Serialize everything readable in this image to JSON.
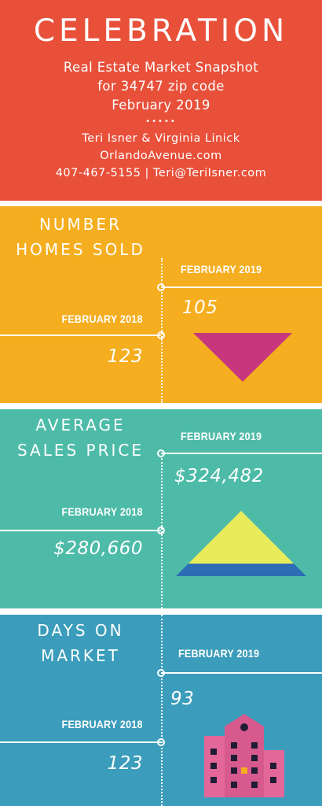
{
  "header": {
    "title": "CELEBRATION",
    "subtitle_lines": [
      "Real Estate Market Snapshot",
      "for 34747 zip code",
      "February 2019"
    ],
    "dots": "•••••",
    "agents": "Teri Isner & Virginia Linick",
    "website": "OrlandoAvenue.com",
    "contact": "407-467-5155 | Teri@TeriIsner.com"
  },
  "sections": [
    {
      "title_lines": [
        "NUMBER",
        "HOMES SOLD"
      ],
      "current_label": "FEBRUARY 2019",
      "current_value": "105",
      "previous_label": "FEBRUARY 2018",
      "previous_value": "123",
      "icon": "down-triangle-icon"
    },
    {
      "title_lines": [
        "AVERAGE",
        "SALES PRICE"
      ],
      "current_label": "FEBRUARY 2019",
      "current_value": "$324,482",
      "previous_label": "FEBRUARY 2018",
      "previous_value": "$280,660",
      "icon": "pyramid-icon"
    },
    {
      "title_lines": [
        "DAYS ON",
        "MARKET"
      ],
      "current_label": "FEBRUARY 2019",
      "current_value": "93",
      "previous_label": "FEBRUARY 2018",
      "previous_value": "123",
      "icon": "building-icon"
    }
  ],
  "colors": {
    "header": "#e8503a",
    "section1": "#f5ae1f",
    "section2": "#4dbba8",
    "section3": "#3b9dbb",
    "triangle_down": "#c7377e",
    "pyramid_top": "#e9ec5a",
    "pyramid_base": "#2c6db5",
    "building": "#e4679a"
  }
}
